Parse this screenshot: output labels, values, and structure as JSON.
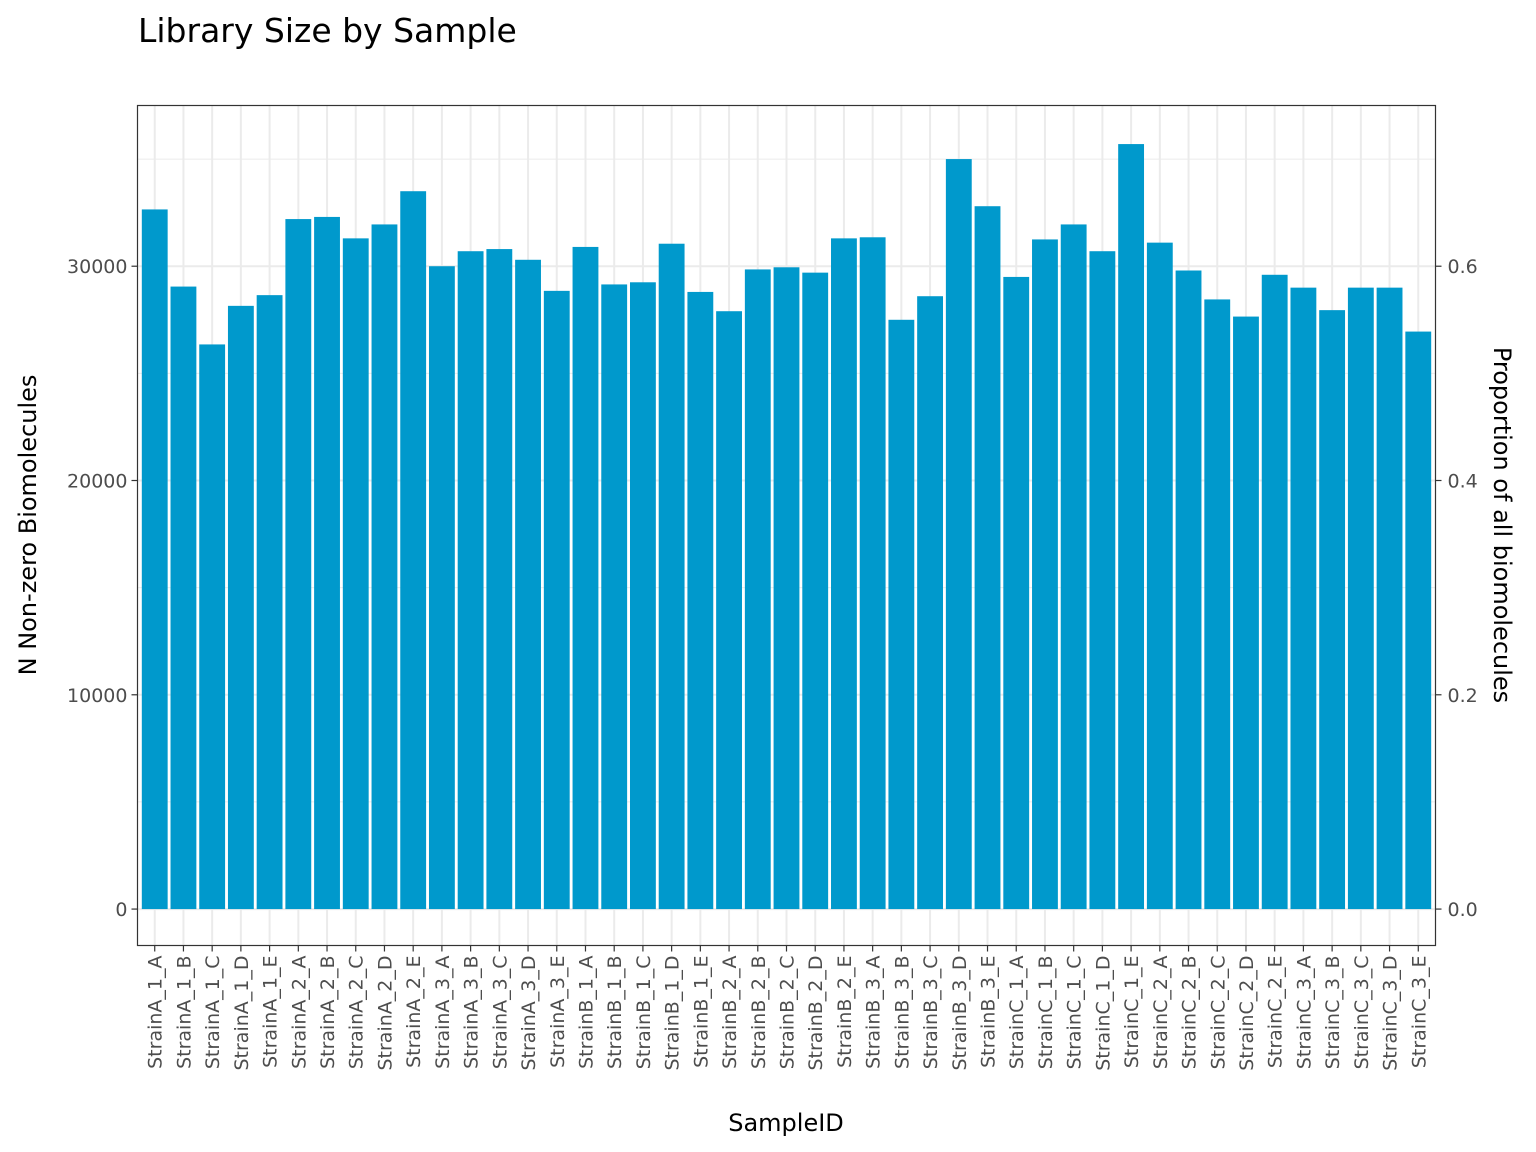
{
  "chart_data": {
    "type": "bar",
    "title": "Library Size by Sample",
    "xlabel": "SampleID",
    "ylabel": "N Non-zero Biomolecules",
    "ylabel_right": "Proportion of all biomolecules",
    "bar_color": "#0099CC",
    "grid": true,
    "ylim": [
      -1700,
      37500
    ],
    "y_ticks": [
      0,
      10000,
      20000,
      30000
    ],
    "y_tick_labels": [
      "0",
      "10000",
      "20000",
      "30000"
    ],
    "y2_ticks": [
      0.0,
      0.2,
      0.4,
      0.6
    ],
    "y2_tick_labels": [
      "0.0",
      "0.2",
      "0.4",
      "0.6"
    ],
    "y2_per_y": 2e-05,
    "categories": [
      "StrainA_1_A",
      "StrainA_1_B",
      "StrainA_1_C",
      "StrainA_1_D",
      "StrainA_1_E",
      "StrainA_2_A",
      "StrainA_2_B",
      "StrainA_2_C",
      "StrainA_2_D",
      "StrainA_2_E",
      "StrainA_3_A",
      "StrainA_3_B",
      "StrainA_3_C",
      "StrainA_3_D",
      "StrainA_3_E",
      "StrainB_1_A",
      "StrainB_1_B",
      "StrainB_1_C",
      "StrainB_1_D",
      "StrainB_1_E",
      "StrainB_2_A",
      "StrainB_2_B",
      "StrainB_2_C",
      "StrainB_2_D",
      "StrainB_2_E",
      "StrainB_3_A",
      "StrainB_3_B",
      "StrainB_3_C",
      "StrainB_3_D",
      "StrainB_3_E",
      "StrainC_1_A",
      "StrainC_1_B",
      "StrainC_1_C",
      "StrainC_1_D",
      "StrainC_1_E",
      "StrainC_2_A",
      "StrainC_2_B",
      "StrainC_2_C",
      "StrainC_2_D",
      "StrainC_2_E",
      "StrainC_3_A",
      "StrainC_3_B",
      "StrainC_3_C",
      "StrainC_3_D",
      "StrainC_3_E"
    ],
    "values": [
      32650,
      29050,
      26350,
      28150,
      28650,
      32200,
      32300,
      31300,
      31950,
      33500,
      30000,
      30700,
      30800,
      30300,
      28850,
      30900,
      29150,
      29250,
      31050,
      28800,
      27900,
      29850,
      29950,
      29700,
      31300,
      31350,
      27500,
      28600,
      35000,
      32800,
      29500,
      31250,
      31950,
      30700,
      35700,
      31100,
      29800,
      28450,
      27650,
      29600,
      29000,
      27950,
      29000,
      29000,
      26950
    ]
  }
}
